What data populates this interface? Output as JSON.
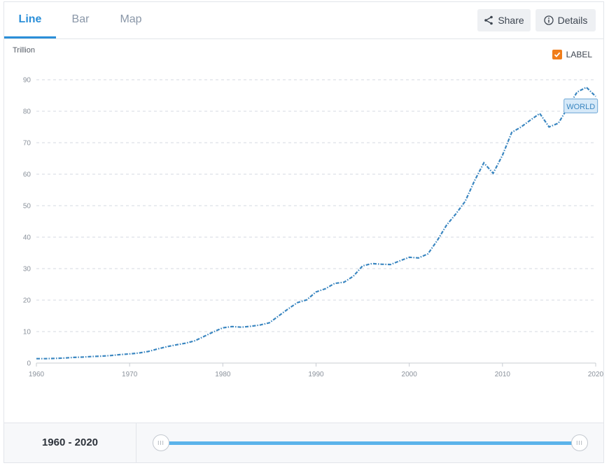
{
  "tabs": [
    {
      "label": "Line"
    },
    {
      "label": "Bar"
    },
    {
      "label": "Map"
    }
  ],
  "toolbar": {
    "share_label": "Share",
    "details_label": "Details"
  },
  "legend": {
    "label": "LABEL",
    "checked": true,
    "color": "#f07d1a"
  },
  "footer": {
    "range_label": "1960 - 2020",
    "range_start": 1960,
    "range_end": 2020
  },
  "chart_data": {
    "type": "line",
    "title": "",
    "xlabel": "",
    "ylabel": "Trillion",
    "xlim": [
      1960,
      2020
    ],
    "ylim": [
      0,
      90
    ],
    "xticks": [
      1960,
      1970,
      1980,
      1990,
      2000,
      2010,
      2020
    ],
    "yticks": [
      0,
      10,
      20,
      30,
      40,
      50,
      60,
      70,
      80,
      90
    ],
    "grid": true,
    "series_color": "#3a86c0",
    "series": [
      {
        "label": "WORLD",
        "x": [
          1960,
          1961,
          1962,
          1963,
          1964,
          1965,
          1966,
          1967,
          1968,
          1969,
          1970,
          1971,
          1972,
          1973,
          1974,
          1975,
          1976,
          1977,
          1978,
          1979,
          1980,
          1981,
          1982,
          1983,
          1984,
          1985,
          1986,
          1987,
          1988,
          1989,
          1990,
          1991,
          1992,
          1993,
          1994,
          1995,
          1996,
          1997,
          1998,
          1999,
          2000,
          2001,
          2002,
          2003,
          2004,
          2005,
          2006,
          2007,
          2008,
          2009,
          2010,
          2011,
          2012,
          2013,
          2014,
          2015,
          2016,
          2017,
          2018,
          2019,
          2020
        ],
        "values": [
          1.4,
          1.4,
          1.5,
          1.6,
          1.8,
          1.9,
          2.1,
          2.2,
          2.4,
          2.7,
          2.9,
          3.2,
          3.7,
          4.5,
          5.2,
          5.8,
          6.3,
          7.1,
          8.5,
          9.9,
          11.2,
          11.6,
          11.4,
          11.7,
          12.1,
          12.8,
          15.0,
          17.2,
          19.2,
          20.1,
          22.6,
          23.6,
          25.3,
          25.7,
          27.6,
          30.9,
          31.6,
          31.4,
          31.3,
          32.5,
          33.6,
          33.4,
          34.7,
          38.9,
          43.8,
          47.4,
          51.4,
          57.9,
          63.6,
          60.3,
          66.0,
          73.3,
          75.0,
          77.2,
          79.3,
          75.0,
          76.2,
          81.1,
          86.1,
          87.6,
          84.7
        ]
      }
    ]
  }
}
